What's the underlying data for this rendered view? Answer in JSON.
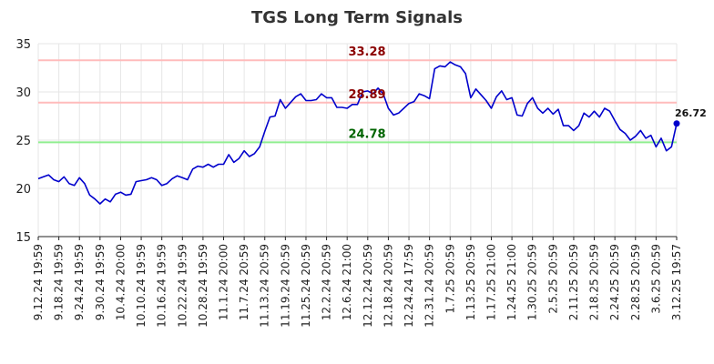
{
  "chart_data": {
    "type": "line",
    "title": "TGS Long Term Signals",
    "xlabel": "",
    "ylabel": "",
    "ylim": [
      15,
      35
    ],
    "yticks": [
      15,
      20,
      25,
      30,
      35
    ],
    "grid": true,
    "x_tick_labels": [
      "9.12.24 19:59",
      "9.18.24 19:59",
      "9.24.24 19:59",
      "9.30.24 19:59",
      "10.4.24 20:00",
      "10.10.24 19:59",
      "10.16.24 19:59",
      "10.22.24 19:59",
      "10.28.24 19:59",
      "11.1.24 20:00",
      "11.7.24 20:59",
      "11.13.24 20:59",
      "11.19.24 20:59",
      "11.25.24 20:59",
      "12.2.24 20:59",
      "12.6.24 21:00",
      "12.12.24 20:59",
      "12.18.24 20:59",
      "12.24.24 17:59",
      "12.31.24 20:59",
      "1.7.25 20:59",
      "1.13.25 20:59",
      "1.17.25 21:00",
      "1.24.25 21:00",
      "1.30.25 20:59",
      "2.5.25 20:59",
      "2.11.25 20:59",
      "2.18.25 20:59",
      "2.24.25 20:59",
      "2.28.25 20:59",
      "3.6.25 20:59",
      "3.12.25 19:57"
    ],
    "series": [
      {
        "name": "",
        "color": "#0000cc",
        "values": [
          21.0,
          21.2,
          21.4,
          20.9,
          20.7,
          21.2,
          20.5,
          20.3,
          21.1,
          20.5,
          19.3,
          18.9,
          18.4,
          18.9,
          18.6,
          19.4,
          19.6,
          19.3,
          19.4,
          20.7,
          20.8,
          20.9,
          21.1,
          20.9,
          20.3,
          20.5,
          21.0,
          21.3,
          21.1,
          20.9,
          22.0,
          22.3,
          22.2,
          22.5,
          22.2,
          22.5,
          22.5,
          23.5,
          22.7,
          23.1,
          23.9,
          23.3,
          23.6,
          24.3,
          25.9,
          27.4,
          27.5,
          29.2,
          28.3,
          28.9,
          29.5,
          29.8,
          29.1,
          29.1,
          29.2,
          29.8,
          29.4,
          29.4,
          28.4,
          28.4,
          28.3,
          28.7,
          28.7,
          30.0,
          30.1,
          29.8,
          30.4,
          29.8,
          28.3,
          27.6,
          27.8,
          28.3,
          28.8,
          29.0,
          29.8,
          29.6,
          29.3,
          32.4,
          32.7,
          32.6,
          33.1,
          32.8,
          32.6,
          31.9,
          29.4,
          30.3,
          29.7,
          29.1,
          28.3,
          29.5,
          30.1,
          29.2,
          29.4,
          27.6,
          27.5,
          28.8,
          29.4,
          28.3,
          27.8,
          28.3,
          27.7,
          28.2,
          26.5,
          26.5,
          26.0,
          26.5,
          27.8,
          27.4,
          28.0,
          27.4,
          28.3,
          28.0,
          27.0,
          26.1,
          25.7,
          25.0,
          25.4,
          26.0,
          25.2,
          25.5,
          24.3,
          25.2,
          23.9,
          24.3,
          26.72
        ]
      }
    ],
    "reference_lines": [
      {
        "value": 33.28,
        "label": "33.28",
        "line_color": "#ffbbbb",
        "label_color": "#8b0000"
      },
      {
        "value": 28.89,
        "label": "28.89",
        "line_color": "#ffbbbb",
        "label_color": "#8b0000"
      },
      {
        "value": 24.78,
        "label": "24.78",
        "line_color": "#90ee90",
        "label_color": "#006400"
      }
    ],
    "last_value": {
      "value": 26.72,
      "label": "26.72"
    }
  }
}
